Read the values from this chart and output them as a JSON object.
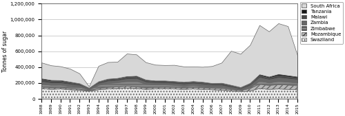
{
  "years": [
    1988,
    1989,
    1990,
    1991,
    1992,
    1993,
    1994,
    1995,
    1996,
    1997,
    1998,
    1999,
    2000,
    2001,
    2002,
    2003,
    2004,
    2005,
    2006,
    2007,
    2008,
    2009,
    2010,
    2011,
    2012,
    2013,
    2014,
    2015
  ],
  "swaziland": [
    130000,
    120000,
    125000,
    115000,
    110000,
    95000,
    115000,
    125000,
    130000,
    135000,
    130000,
    120000,
    125000,
    130000,
    125000,
    120000,
    125000,
    120000,
    115000,
    110000,
    100000,
    90000,
    100000,
    130000,
    120000,
    125000,
    120000,
    115000
  ],
  "mozambique": [
    20000,
    18000,
    16000,
    14000,
    12000,
    8000,
    15000,
    20000,
    22000,
    25000,
    22000,
    18000,
    18000,
    18000,
    20000,
    18000,
    20000,
    20000,
    18000,
    20000,
    18000,
    15000,
    30000,
    55000,
    50000,
    55000,
    55000,
    50000
  ],
  "zimbabwe": [
    40000,
    38000,
    36000,
    34000,
    30000,
    15000,
    45000,
    55000,
    55000,
    65000,
    75000,
    50000,
    38000,
    33000,
    30000,
    28000,
    28000,
    24000,
    22000,
    20000,
    12000,
    8000,
    18000,
    45000,
    35000,
    45000,
    40000,
    40000
  ],
  "zambia": [
    28000,
    26000,
    24000,
    22000,
    18000,
    10000,
    20000,
    24000,
    26000,
    28000,
    30000,
    24000,
    22000,
    20000,
    20000,
    20000,
    22000,
    22000,
    20000,
    22000,
    20000,
    15000,
    24000,
    40000,
    40000,
    44000,
    42000,
    40000
  ],
  "malawi": [
    25000,
    23000,
    23000,
    20000,
    18000,
    8000,
    18000,
    20000,
    20000,
    22000,
    22000,
    20000,
    18000,
    20000,
    18000,
    18000,
    18000,
    18000,
    16000,
    20000,
    18000,
    14000,
    18000,
    24000,
    22000,
    26000,
    24000,
    22000
  ],
  "tanzania": [
    15000,
    13000,
    12000,
    11000,
    8000,
    4000,
    8000,
    10000,
    10000,
    11000,
    12000,
    10000,
    10000,
    10000,
    10000,
    10000,
    10000,
    10000,
    8000,
    10000,
    8000,
    6000,
    10000,
    16000,
    14000,
    18000,
    16000,
    14000
  ],
  "south_africa": [
    200000,
    185000,
    175000,
    165000,
    125000,
    18000,
    195000,
    210000,
    205000,
    285000,
    270000,
    220000,
    200000,
    195000,
    205000,
    195000,
    185000,
    190000,
    215000,
    255000,
    430000,
    420000,
    480000,
    620000,
    570000,
    640000,
    620000,
    270000
  ],
  "colors": {
    "swaziland": "#f0f0f0",
    "mozambique": "#b8b8b8",
    "zimbabwe": "#888888",
    "zambia": "#686868",
    "malawi": "#484848",
    "tanzania": "#181818",
    "south_africa": "#d8d8d8"
  },
  "hatches": {
    "swaziland": "....",
    "mozambique": "////",
    "zimbabwe": "----",
    "zambia": "",
    "malawi": "",
    "tanzania": "",
    "south_africa": ""
  },
  "ylim": [
    0,
    1200000
  ],
  "yticks": [
    0,
    200000,
    400000,
    600000,
    800000,
    1000000,
    1200000
  ],
  "ylabel": "Tonnes of sugar",
  "background_color": "#ffffff"
}
